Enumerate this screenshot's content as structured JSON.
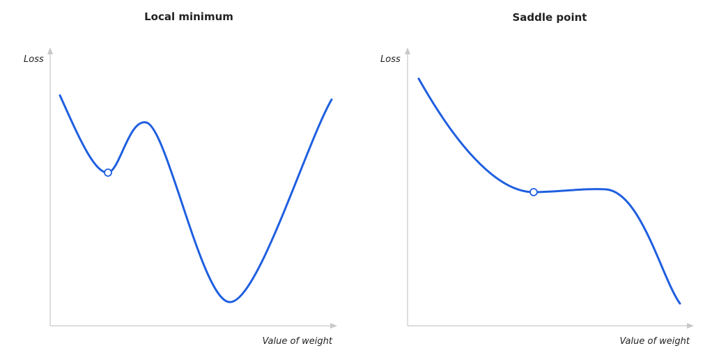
{
  "panels": [
    {
      "title": "Local minimum",
      "y_axis_label": "Loss",
      "x_axis_label": "Value of weight"
    },
    {
      "title": "Saddle point",
      "y_axis_label": "Loss",
      "x_axis_label": "Value of weight"
    }
  ]
}
